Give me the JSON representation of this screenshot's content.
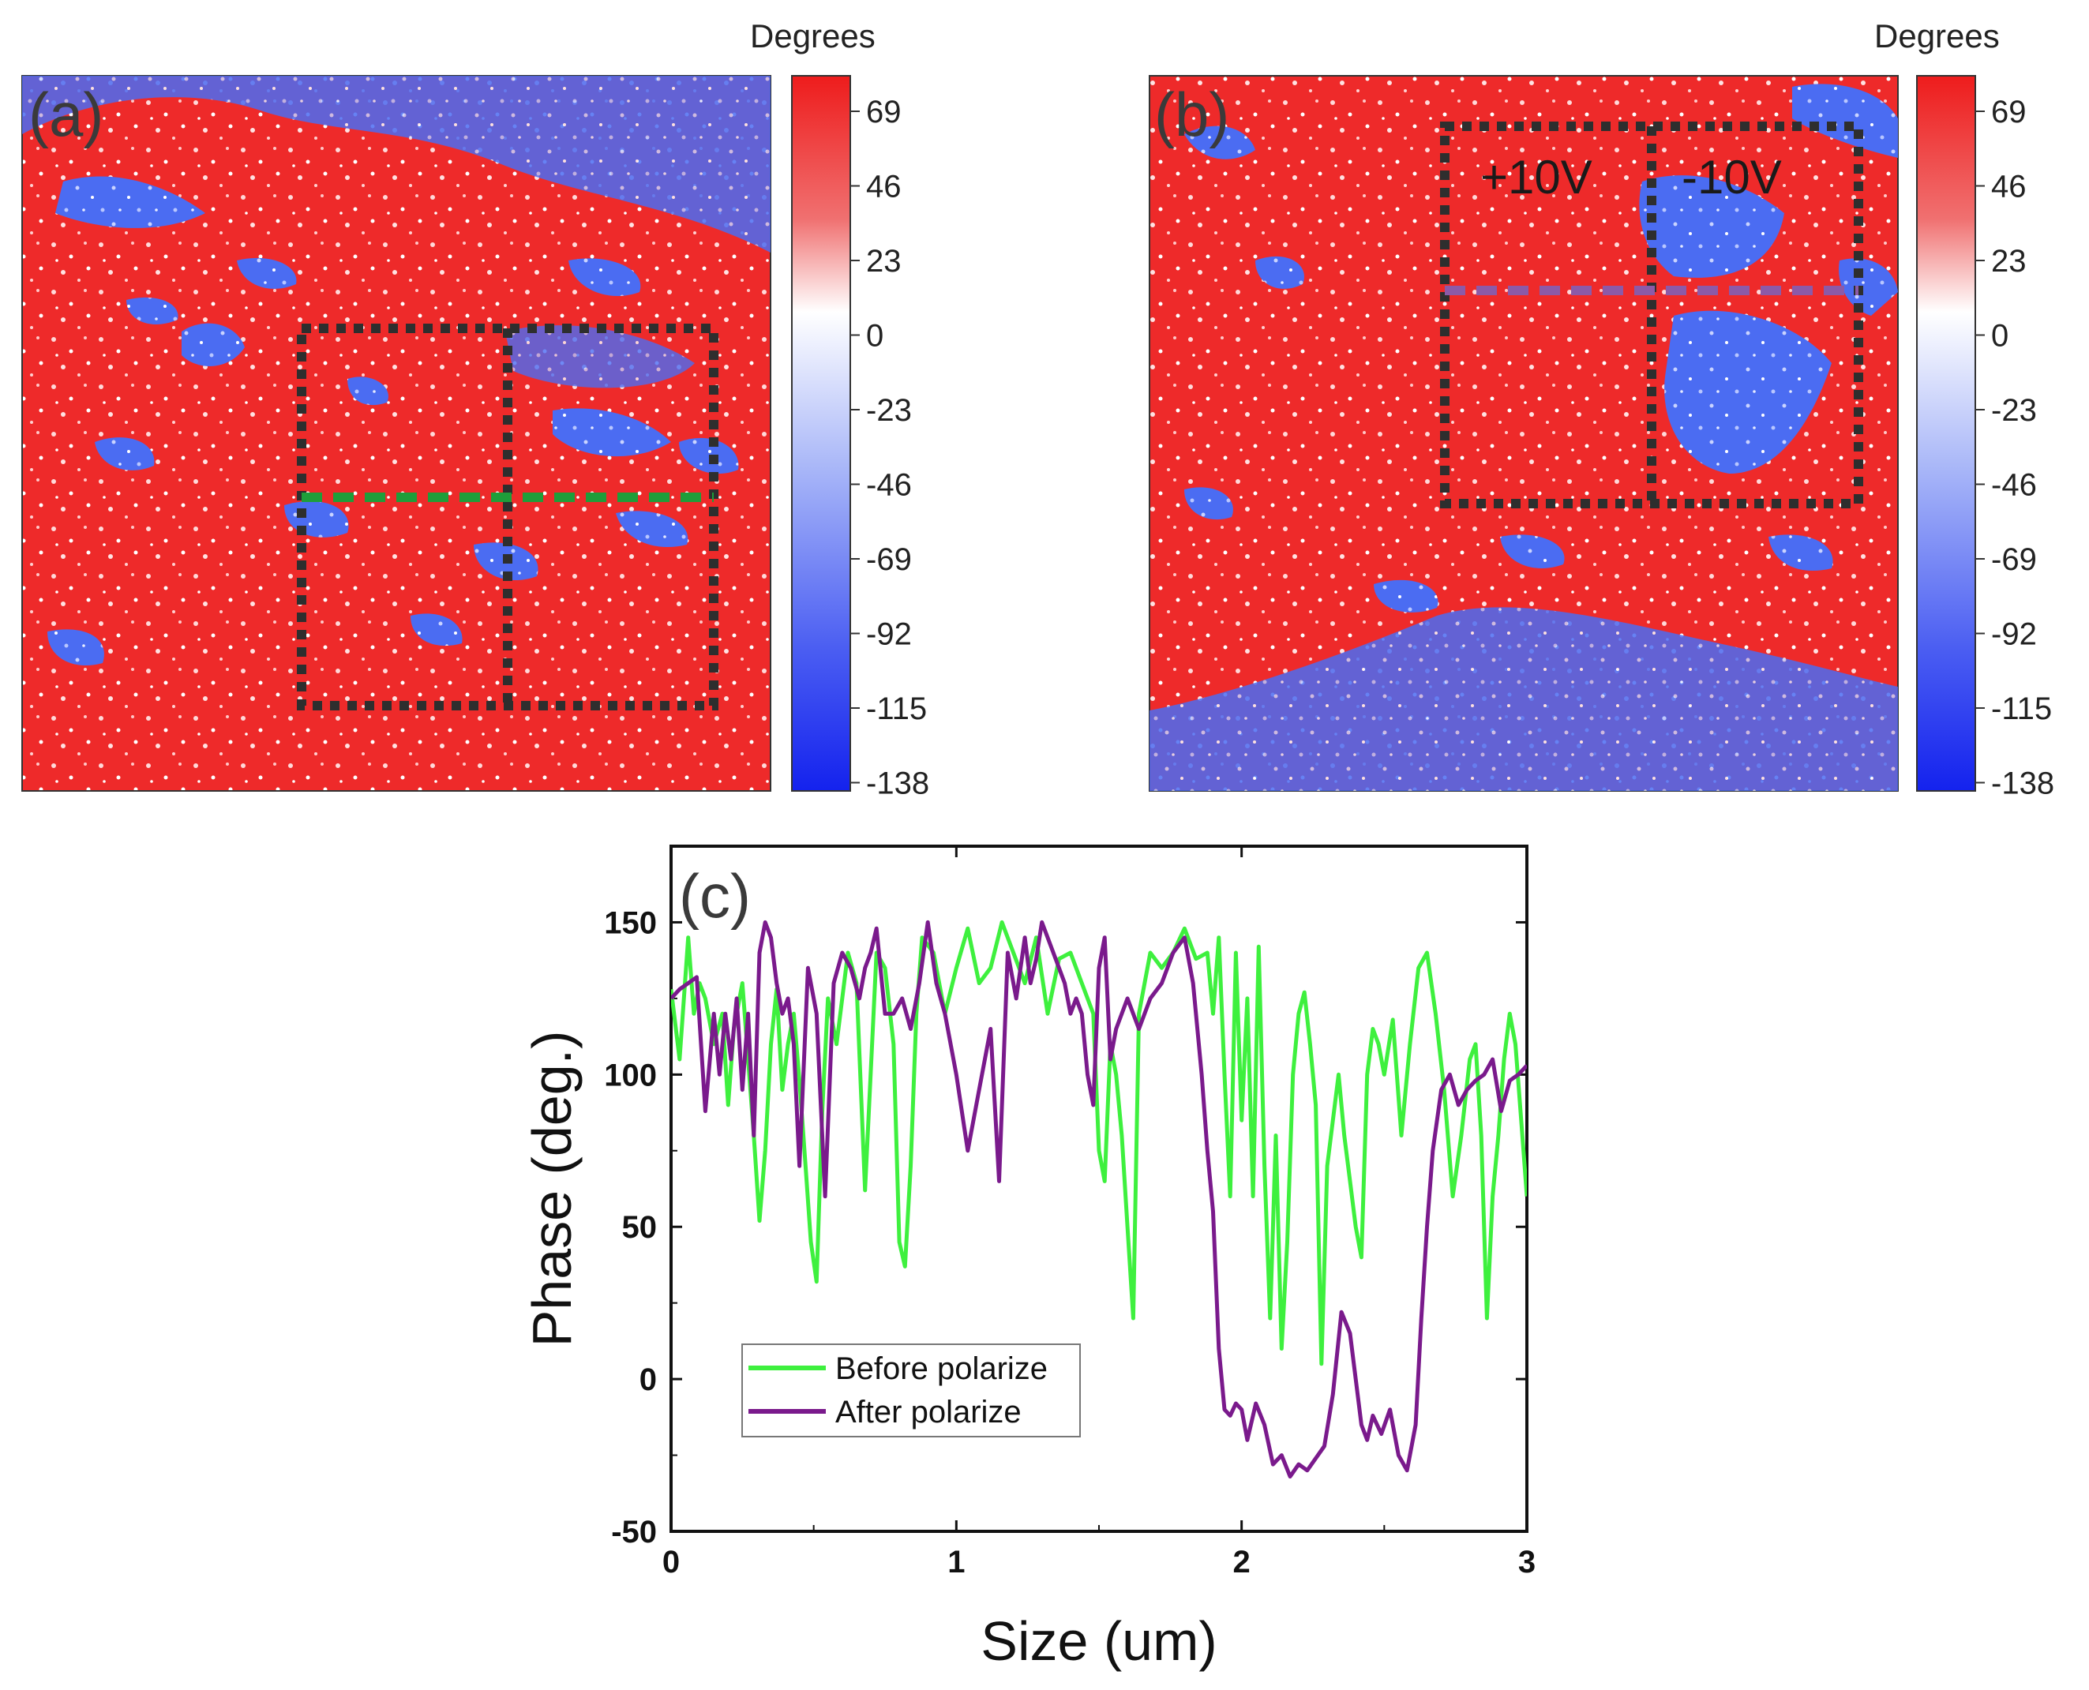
{
  "panels": {
    "a": {
      "label": "(a)",
      "colorbar": {
        "title": "Degrees",
        "ticks": [
          "69",
          "46",
          "23",
          "0",
          "-23",
          "-46",
          "-69",
          "-92",
          "-115",
          "-138"
        ]
      }
    },
    "b": {
      "label": "(b)",
      "colorbar": {
        "title": "Degrees",
        "ticks": [
          "69",
          "46",
          "23",
          "0",
          "-23",
          "-46",
          "-69",
          "-92",
          "-115",
          "-138"
        ]
      },
      "regions": [
        "+10V",
        "-10V"
      ]
    },
    "c": {
      "label": "(c)"
    }
  },
  "colors": {
    "red": "#ee2a2a",
    "blue": "#3d5ef0",
    "white": "#ffffff",
    "box": "#2e2e2e",
    "line_a": "#1e9e3a",
    "line_b": "#8c5aa8",
    "before": "#3ef03e",
    "after": "#7a1a8c"
  },
  "chart_data": {
    "type": "line",
    "title": "",
    "xlabel": "Size (um)",
    "ylabel": "Phase (deg.)",
    "xlim": [
      0,
      3
    ],
    "ylim": [
      -50,
      175
    ],
    "xticks": [
      0,
      1,
      2,
      3
    ],
    "yticks": [
      -50,
      0,
      50,
      100,
      150
    ],
    "legend": "lower-left",
    "series": [
      {
        "name": "Before polarize",
        "color": "#3ef03e",
        "x": [
          0,
          0.03,
          0.06,
          0.08,
          0.1,
          0.12,
          0.15,
          0.18,
          0.2,
          0.22,
          0.25,
          0.27,
          0.29,
          0.31,
          0.33,
          0.35,
          0.37,
          0.39,
          0.41,
          0.43,
          0.45,
          0.47,
          0.49,
          0.51,
          0.53,
          0.55,
          0.58,
          0.62,
          0.65,
          0.68,
          0.72,
          0.75,
          0.78,
          0.8,
          0.82,
          0.84,
          0.86,
          0.88,
          0.92,
          0.96,
          1.0,
          1.04,
          1.08,
          1.12,
          1.16,
          1.2,
          1.24,
          1.28,
          1.32,
          1.36,
          1.4,
          1.44,
          1.48,
          1.5,
          1.52,
          1.54,
          1.56,
          1.58,
          1.6,
          1.62,
          1.64,
          1.68,
          1.72,
          1.76,
          1.8,
          1.84,
          1.88,
          1.9,
          1.92,
          1.94,
          1.96,
          1.98,
          2.0,
          2.02,
          2.04,
          2.06,
          2.08,
          2.1,
          2.12,
          2.14,
          2.16,
          2.18,
          2.2,
          2.22,
          2.24,
          2.26,
          2.28,
          2.3,
          2.32,
          2.34,
          2.36,
          2.38,
          2.4,
          2.42,
          2.44,
          2.46,
          2.48,
          2.5,
          2.53,
          2.56,
          2.59,
          2.62,
          2.65,
          2.68,
          2.71,
          2.74,
          2.77,
          2.8,
          2.82,
          2.84,
          2.86,
          2.88,
          2.9,
          2.92,
          2.94,
          2.96,
          2.98,
          3.0
        ],
        "values": [
          128,
          105,
          145,
          120,
          130,
          125,
          110,
          120,
          90,
          115,
          130,
          105,
          80,
          52,
          75,
          110,
          128,
          95,
          110,
          120,
          98,
          72,
          45,
          32,
          88,
          125,
          110,
          140,
          130,
          62,
          140,
          135,
          110,
          45,
          37,
          70,
          120,
          145,
          140,
          120,
          135,
          148,
          130,
          135,
          150,
          140,
          130,
          145,
          120,
          138,
          140,
          130,
          120,
          75,
          65,
          110,
          100,
          80,
          50,
          20,
          120,
          140,
          135,
          140,
          148,
          138,
          140,
          120,
          145,
          100,
          60,
          140,
          85,
          125,
          60,
          142,
          70,
          20,
          80,
          10,
          45,
          100,
          120,
          127,
          110,
          90,
          5,
          70,
          85,
          100,
          80,
          65,
          50,
          40,
          100,
          115,
          110,
          100,
          118,
          80,
          110,
          135,
          140,
          120,
          95,
          60,
          80,
          105,
          110,
          80,
          20,
          60,
          80,
          105,
          120,
          110,
          85,
          60
        ]
      },
      {
        "name": "After polarize",
        "color": "#7a1a8c",
        "x": [
          0,
          0.03,
          0.06,
          0.09,
          0.12,
          0.15,
          0.17,
          0.19,
          0.21,
          0.23,
          0.25,
          0.27,
          0.29,
          0.31,
          0.33,
          0.35,
          0.37,
          0.39,
          0.41,
          0.43,
          0.45,
          0.48,
          0.51,
          0.54,
          0.57,
          0.6,
          0.63,
          0.66,
          0.68,
          0.7,
          0.72,
          0.75,
          0.78,
          0.81,
          0.84,
          0.87,
          0.9,
          0.93,
          0.96,
          1.0,
          1.04,
          1.08,
          1.12,
          1.15,
          1.18,
          1.21,
          1.24,
          1.26,
          1.28,
          1.3,
          1.32,
          1.34,
          1.36,
          1.38,
          1.4,
          1.42,
          1.44,
          1.46,
          1.48,
          1.5,
          1.52,
          1.54,
          1.56,
          1.6,
          1.64,
          1.68,
          1.72,
          1.76,
          1.8,
          1.83,
          1.86,
          1.88,
          1.9,
          1.92,
          1.94,
          1.96,
          1.98,
          2.0,
          2.02,
          2.05,
          2.08,
          2.11,
          2.14,
          2.17,
          2.2,
          2.23,
          2.26,
          2.29,
          2.32,
          2.35,
          2.38,
          2.4,
          2.42,
          2.44,
          2.46,
          2.49,
          2.52,
          2.55,
          2.58,
          2.61,
          2.63,
          2.65,
          2.67,
          2.7,
          2.73,
          2.76,
          2.79,
          2.82,
          2.85,
          2.88,
          2.91,
          2.94,
          2.97,
          3.0
        ],
        "values": [
          125,
          128,
          130,
          132,
          88,
          120,
          100,
          120,
          105,
          125,
          95,
          120,
          80,
          140,
          150,
          145,
          130,
          120,
          125,
          110,
          70,
          135,
          120,
          60,
          130,
          140,
          135,
          125,
          135,
          140,
          148,
          120,
          120,
          125,
          115,
          130,
          150,
          130,
          120,
          100,
          75,
          95,
          115,
          65,
          140,
          125,
          145,
          130,
          138,
          150,
          145,
          140,
          135,
          130,
          120,
          125,
          120,
          100,
          90,
          135,
          145,
          105,
          115,
          125,
          115,
          125,
          130,
          140,
          145,
          130,
          100,
          75,
          55,
          10,
          -10,
          -12,
          -8,
          -10,
          -20,
          -8,
          -15,
          -28,
          -25,
          -32,
          -28,
          -30,
          -26,
          -22,
          -5,
          22,
          15,
          0,
          -15,
          -20,
          -12,
          -18,
          -10,
          -25,
          -30,
          -15,
          20,
          50,
          75,
          95,
          100,
          90,
          95,
          98,
          100,
          105,
          88,
          98,
          100,
          103
        ]
      }
    ]
  }
}
